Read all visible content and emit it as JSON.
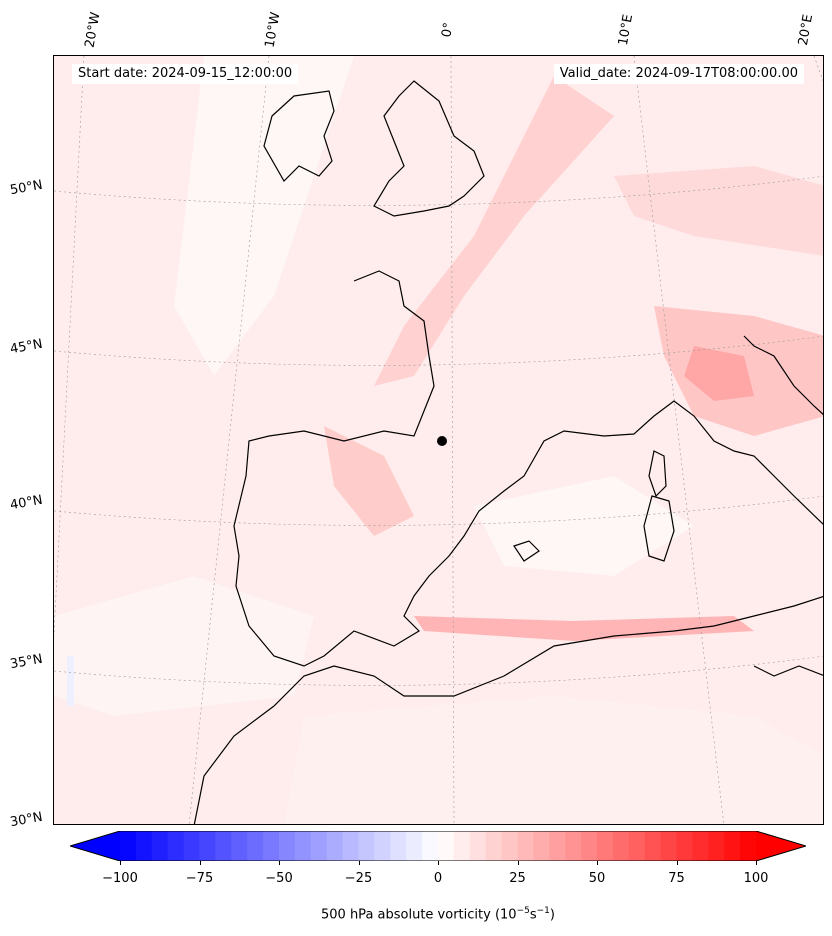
{
  "header": {
    "start_date": "Start date: 2024-09-15_12:00:00",
    "valid_date": "Valid_date: 2024-09-17T08:00:00.00"
  },
  "map": {
    "projection": "Lambert conformal",
    "field": "500 hPa absolute vorticity",
    "lon_labels": [
      "20°W",
      "10°W",
      "0°",
      "10°E",
      "20°E"
    ],
    "lat_labels": [
      "50°N",
      "45°N",
      "40°N",
      "35°N",
      "30°N"
    ],
    "marker": {
      "name": "black-dot-marker",
      "lon": -0.5,
      "lat": 42.3
    }
  },
  "colorbar": {
    "label_prefix": "500 hPa absolute vorticity (10",
    "label_exp1": "−5",
    "label_mid": "s",
    "label_exp2": "−1",
    "label_suffix": ")",
    "min": -100,
    "max": 100,
    "ticks": [
      "−100",
      "−75",
      "−50",
      "−25",
      "0",
      "25",
      "50",
      "75",
      "100"
    ],
    "tick_values": [
      -100,
      -75,
      -50,
      -25,
      0,
      25,
      50,
      75,
      100
    ],
    "levels": 40,
    "colors": {
      "negative": "#0000ff",
      "zero": "#ffffff",
      "positive": "#ff0000"
    },
    "extend": "both"
  }
}
